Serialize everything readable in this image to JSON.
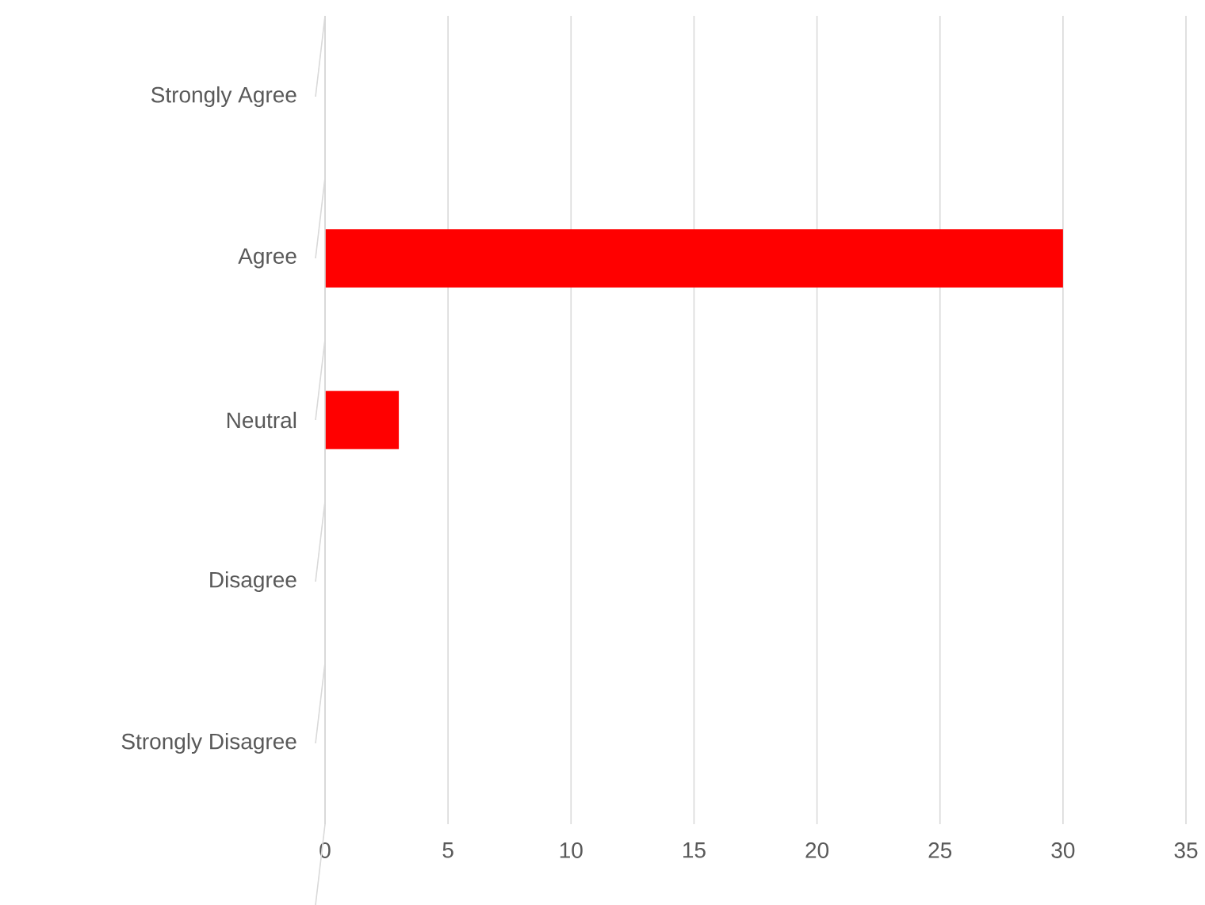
{
  "chart_data": {
    "type": "bar",
    "orientation": "horizontal",
    "categories": [
      "Strongly Agree",
      "Agree",
      "Neutral",
      "Disagree",
      "Strongly Disagree"
    ],
    "values": [
      0,
      30,
      3,
      0,
      0
    ],
    "color": "#ff0000",
    "xlim": [
      0,
      35
    ],
    "xticks": [
      0,
      5,
      10,
      15,
      20,
      25,
      30,
      35
    ],
    "grid": "x"
  }
}
